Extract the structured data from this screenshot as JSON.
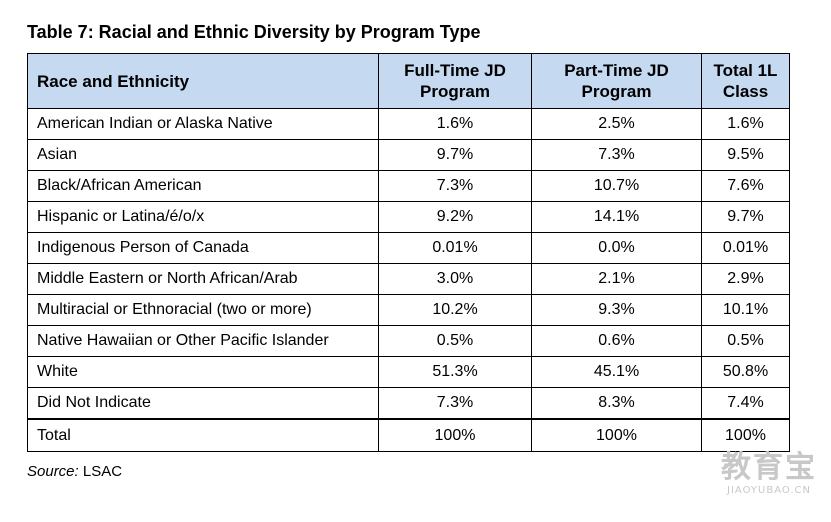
{
  "title": "Table 7: Racial and Ethnic Diversity by Program Type",
  "table": {
    "headers": [
      "Race and Ethnicity",
      "Full-Time JD Program",
      "Part-Time JD Program",
      "Total 1L Class"
    ],
    "rows": [
      [
        "American Indian or Alaska Native",
        "1.6%",
        "2.5%",
        "1.6%"
      ],
      [
        "Asian",
        "9.7%",
        "7.3%",
        "9.5%"
      ],
      [
        "Black/African American",
        "7.3%",
        "10.7%",
        "7.6%"
      ],
      [
        "Hispanic or Latina/é/o/x",
        "9.2%",
        "14.1%",
        "9.7%"
      ],
      [
        "Indigenous Person of Canada",
        "0.01%",
        "0.0%",
        "0.01%"
      ],
      [
        "Middle Eastern or North African/Arab",
        "3.0%",
        "2.1%",
        "2.9%"
      ],
      [
        "Multiracial or Ethnoracial (two or more)",
        "10.2%",
        "9.3%",
        "10.1%"
      ],
      [
        "Native Hawaiian or Other Pacific Islander",
        "0.5%",
        "0.6%",
        "0.5%"
      ],
      [
        "White",
        "51.3%",
        "45.1%",
        "50.8%"
      ],
      [
        "Did Not Indicate",
        "7.3%",
        "8.3%",
        "7.4%"
      ]
    ],
    "total_row": [
      "Total",
      "100%",
      "100%",
      "100%"
    ]
  },
  "source": {
    "label": "Source:",
    "value": "LSAC"
  },
  "watermark": {
    "main": "教育宝",
    "sub": "JIAOYUBAO.CN"
  },
  "colors": {
    "header_background": "#c5d9f1",
    "border": "#000000",
    "watermark": "#c8c8c8"
  }
}
